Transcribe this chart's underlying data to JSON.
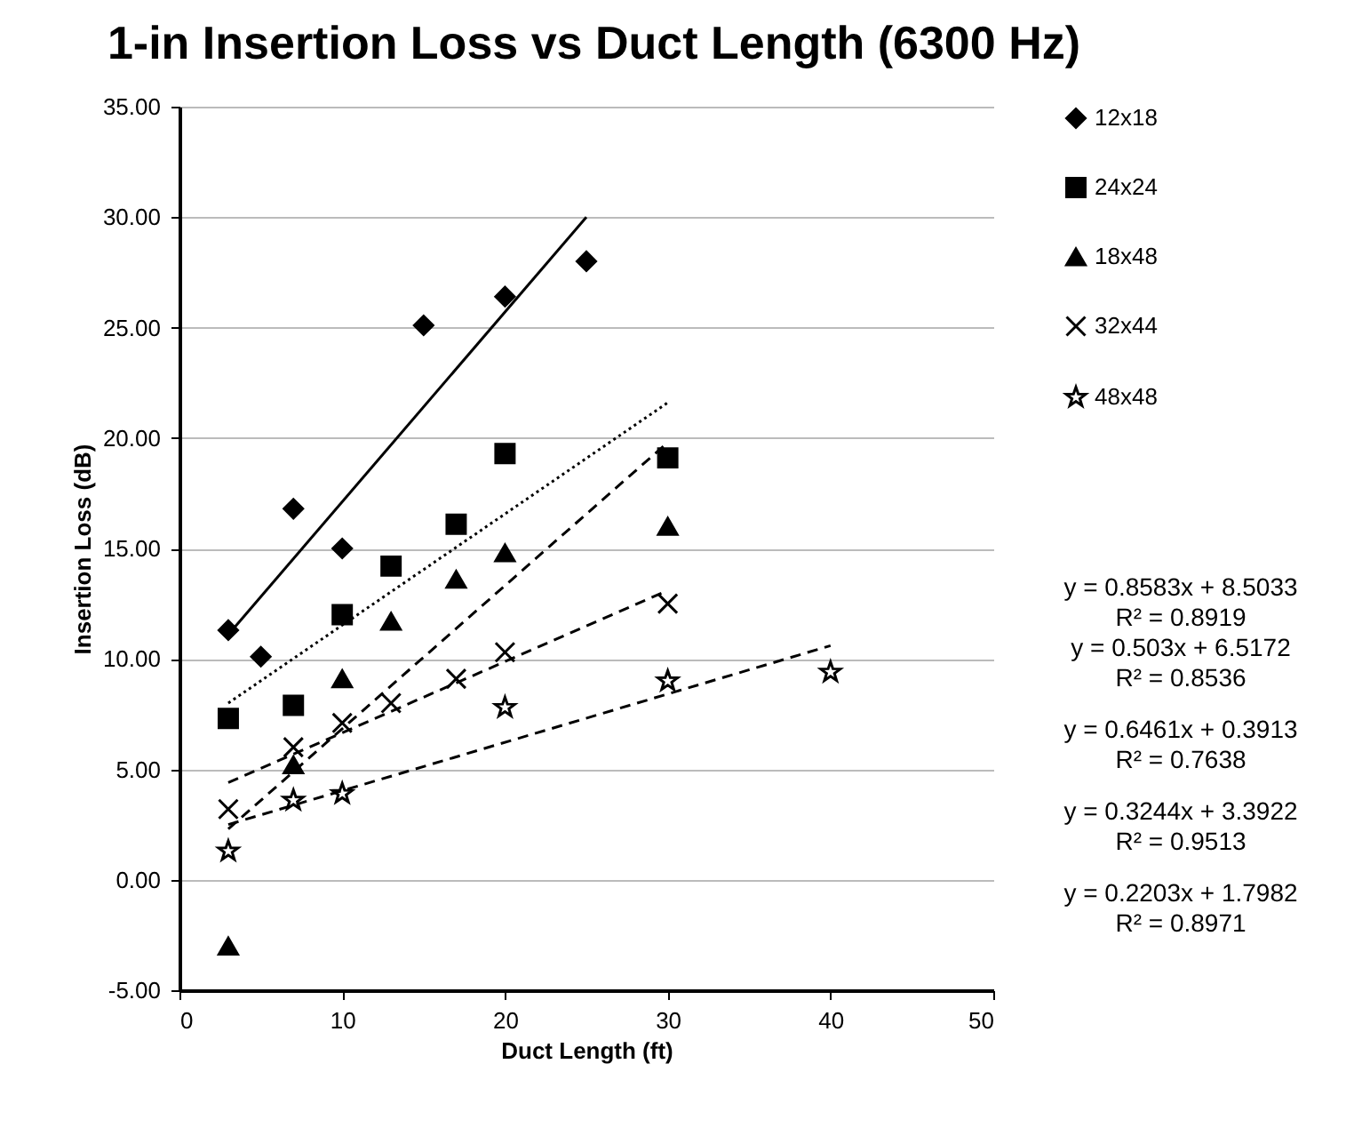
{
  "chart_data": {
    "type": "scatter",
    "title": "1-in Insertion Loss vs Duct Length (6300 Hz)",
    "xlabel": "Duct Length (ft)",
    "ylabel": "Insertion Loss (dB)",
    "xlim": [
      0,
      50
    ],
    "xticks": [
      0,
      10,
      20,
      30,
      40,
      50
    ],
    "ylim": [
      -5,
      35
    ],
    "yticks": [
      {
        "value": -5,
        "label": "-5.00"
      },
      {
        "value": 0,
        "label": "0.00"
      },
      {
        "value": 5,
        "label": "5.00"
      },
      {
        "value": 10,
        "label": "10.00"
      },
      {
        "value": 15,
        "label": "15.00"
      },
      {
        "value": 20,
        "label": "20.00"
      },
      {
        "value": 25,
        "label": "25.00"
      },
      {
        "value": 30,
        "label": "30.00"
      },
      {
        "value": 35,
        "label": "35.00"
      }
    ],
    "grid": "y",
    "legend": "top right",
    "series": [
      {
        "name": "12x18",
        "type": "scatter",
        "marker": "diamond",
        "color": "#000000",
        "x": [
          3,
          5,
          7,
          10,
          15,
          20,
          25
        ],
        "values": [
          11.3,
          10.1,
          16.8,
          15.0,
          25.1,
          26.4,
          28.0
        ]
      },
      {
        "name": "24x24",
        "type": "scatter",
        "marker": "square",
        "color": "#000000",
        "x": [
          3,
          7,
          10,
          13,
          17,
          20,
          30
        ],
        "values": [
          7.3,
          7.9,
          12.0,
          14.2,
          16.1,
          19.3,
          19.1
        ]
      },
      {
        "name": "18x48",
        "type": "scatter",
        "marker": "triangle",
        "color": "#000000",
        "x": [
          3,
          7,
          10,
          13,
          17,
          20,
          30
        ],
        "values": [
          -3.0,
          5.2,
          9.1,
          11.7,
          13.6,
          14.8,
          16.0
        ]
      },
      {
        "name": "32x44",
        "type": "scatter",
        "marker": "cross",
        "color": "#000000",
        "x": [
          3,
          7,
          10,
          13,
          17,
          20,
          30
        ],
        "values": [
          3.2,
          6.0,
          7.1,
          8.0,
          9.1,
          10.3,
          12.5
        ]
      },
      {
        "name": "48x48",
        "type": "scatter",
        "marker": "star",
        "color": "#000000",
        "x": [
          3,
          7,
          10,
          20,
          30,
          40
        ],
        "values": [
          1.3,
          3.6,
          3.9,
          7.8,
          9.0,
          9.4
        ]
      },
      {
        "type": "line",
        "line_style": "solid",
        "color": "#000000",
        "x": [
          3,
          25
        ],
        "values": [
          11.1,
          30.0
        ]
      },
      {
        "type": "line",
        "line_style": "dotted",
        "color": "#000000",
        "x": [
          3,
          30
        ],
        "values": [
          8.0,
          21.6
        ]
      },
      {
        "type": "line",
        "line_style": "dashed",
        "color": "#000000",
        "x": [
          3,
          30
        ],
        "values": [
          2.3,
          19.8
        ]
      },
      {
        "type": "line",
        "line_style": "dashed",
        "color": "#000000",
        "x": [
          3,
          30
        ],
        "values": [
          4.4,
          13.1
        ]
      },
      {
        "type": "line",
        "line_style": "dashed",
        "color": "#000000",
        "x": [
          3,
          40
        ],
        "values": [
          2.5,
          10.6
        ]
      }
    ],
    "annotations": [
      "y = 0.8583x + 8.5033",
      "R² = 0.8919",
      "y = 0.503x + 6.5172",
      "R² = 0.8536",
      "y = 0.6461x + 0.3913",
      "R² = 0.7638",
      "y = 0.3244x + 3.3922",
      "R² = 0.9513",
      "y = 0.2203x + 1.7982",
      "R² = 0.8971"
    ]
  }
}
